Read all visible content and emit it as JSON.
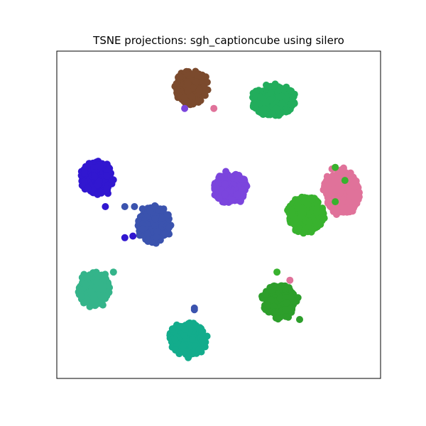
{
  "chart_data": {
    "type": "scatter",
    "title": "TSNE projections: sgh_captioncube using silero",
    "xlabel": "",
    "ylabel": "",
    "axes_ticks": false,
    "grid": false,
    "xlim": [
      0,
      100
    ],
    "ylim": [
      0,
      100
    ],
    "clusters": [
      {
        "color": "#7b4a2d",
        "center": [
          41.5,
          89.0
        ],
        "spread": [
          5.0,
          5.0
        ],
        "n": 260
      },
      {
        "color": "#22ad5c",
        "center": [
          67.0,
          85.0
        ],
        "spread": [
          6.5,
          4.5
        ],
        "n": 260
      },
      {
        "color": "#3117d0",
        "center": [
          12.5,
          61.0
        ],
        "spread": [
          5.0,
          5.0
        ],
        "n": 260
      },
      {
        "color": "#7b45dd",
        "center": [
          53.5,
          58.0
        ],
        "spread": [
          5.0,
          4.5
        ],
        "n": 260
      },
      {
        "color": "#e0729a",
        "center": [
          88.0,
          57.0
        ],
        "spread": [
          5.5,
          6.5
        ],
        "n": 260
      },
      {
        "color": "#38b22e",
        "center": [
          77.0,
          50.0
        ],
        "spread": [
          5.5,
          5.5
        ],
        "n": 280
      },
      {
        "color": "#3b53ae",
        "center": [
          30.0,
          47.0
        ],
        "spread": [
          5.0,
          5.5
        ],
        "n": 260
      },
      {
        "color": "#34b48a",
        "center": [
          11.5,
          27.5
        ],
        "spread": [
          4.5,
          5.0
        ],
        "n": 260
      },
      {
        "color": "#2d9e2b",
        "center": [
          68.5,
          23.5
        ],
        "spread": [
          5.0,
          5.0
        ],
        "n": 260
      },
      {
        "color": "#13ac8c",
        "center": [
          40.5,
          12.0
        ],
        "spread": [
          5.5,
          5.0
        ],
        "n": 260
      }
    ],
    "outliers": [
      {
        "x": 48.5,
        "y": 82.5,
        "color": "#e0729a"
      },
      {
        "x": 39.5,
        "y": 82.5,
        "color": "#7b45dd"
      },
      {
        "x": 85.0,
        "y": 64.0,
        "color": "#e0729a"
      },
      {
        "x": 89.0,
        "y": 60.5,
        "color": "#38b22e"
      },
      {
        "x": 86.0,
        "y": 64.5,
        "color": "#38b22e"
      },
      {
        "x": 86.0,
        "y": 54.0,
        "color": "#38b22e"
      },
      {
        "x": 15.0,
        "y": 52.5,
        "color": "#3117d0"
      },
      {
        "x": 21.0,
        "y": 52.5,
        "color": "#3b53ae"
      },
      {
        "x": 24.0,
        "y": 52.5,
        "color": "#3b53ae"
      },
      {
        "x": 23.5,
        "y": 43.5,
        "color": "#3117d0"
      },
      {
        "x": 21.0,
        "y": 43.0,
        "color": "#3117d0"
      },
      {
        "x": 68.0,
        "y": 32.5,
        "color": "#38b22e"
      },
      {
        "x": 72.0,
        "y": 30.0,
        "color": "#e0729a"
      },
      {
        "x": 70.5,
        "y": 28.0,
        "color": "#2d9e2b"
      },
      {
        "x": 75.0,
        "y": 18.0,
        "color": "#2d9e2b"
      },
      {
        "x": 42.5,
        "y": 21.0,
        "color": "#3b53ae"
      },
      {
        "x": 42.5,
        "y": 21.5,
        "color": "#3b53ae"
      },
      {
        "x": 17.5,
        "y": 32.5,
        "color": "#34b48a"
      }
    ]
  }
}
